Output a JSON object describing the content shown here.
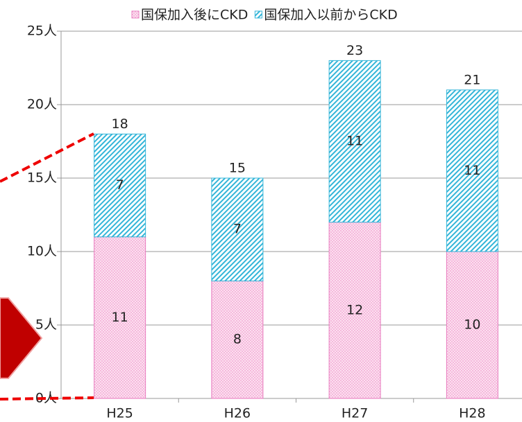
{
  "chart_data": {
    "type": "stacked_bar",
    "categories": [
      "H25",
      "H26",
      "H27",
      "H28"
    ],
    "series": [
      {
        "name": "国保加入後にCKD",
        "color": "#e87bbf",
        "values": [
          11,
          8,
          12,
          10
        ]
      },
      {
        "name": "国保加入以前からCKD",
        "color": "#33b5d8",
        "values": [
          7,
          7,
          11,
          11
        ]
      }
    ],
    "totals": [
      18,
      15,
      23,
      21
    ],
    "ylim": [
      0,
      25
    ],
    "yticks": [
      {
        "value": 0,
        "label": "0人"
      },
      {
        "value": 5,
        "label": "5人"
      },
      {
        "value": 10,
        "label": "10人"
      },
      {
        "value": 15,
        "label": "15人"
      },
      {
        "value": 20,
        "label": "20人"
      },
      {
        "value": 25,
        "label": "25人"
      }
    ],
    "grid": true
  }
}
